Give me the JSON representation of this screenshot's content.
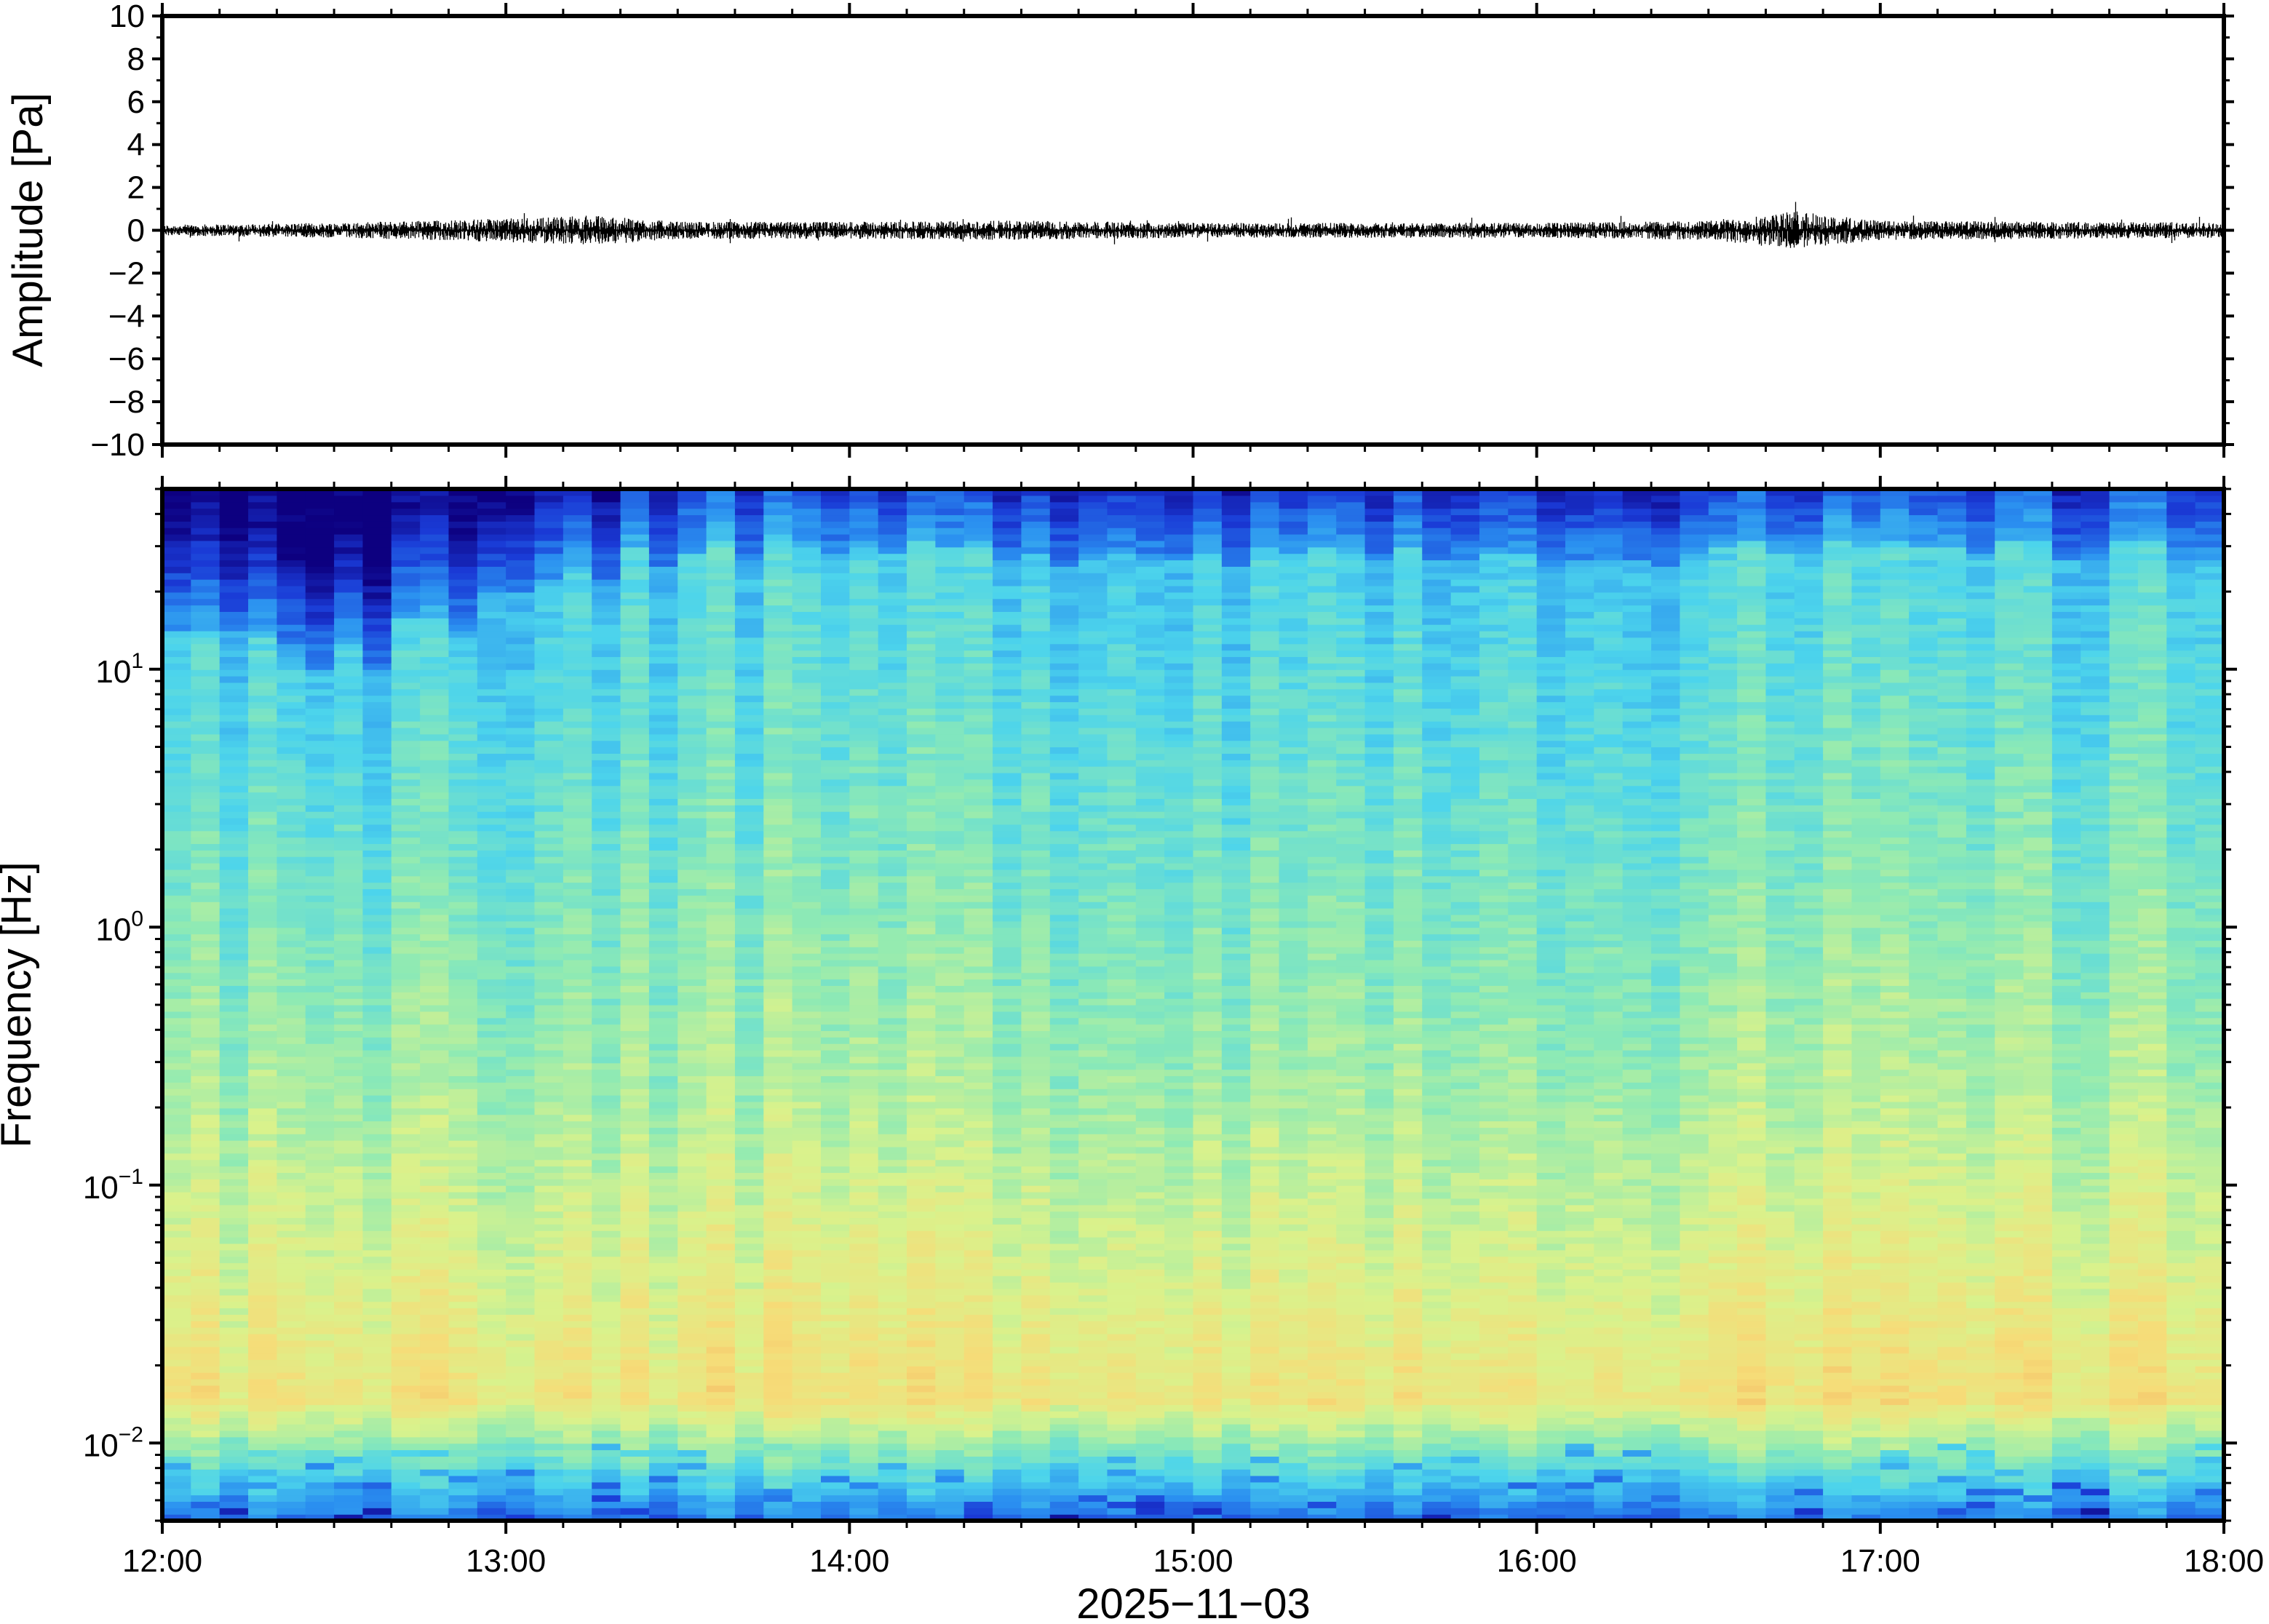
{
  "figure": {
    "date_label": "2025−11−03"
  },
  "chart_data": [
    {
      "type": "line",
      "title": "",
      "xlabel": "2025−11−03",
      "ylabel": "Amplitude [Pa]",
      "xlim": [
        "12:00",
        "18:00"
      ],
      "ylim": [
        -10,
        10
      ],
      "x_ticks": [
        "12:00",
        "13:00",
        "14:00",
        "15:00",
        "16:00",
        "17:00",
        "18:00"
      ],
      "y_ticks": [
        "10",
        "8",
        "6",
        "4",
        "2",
        "0",
        "−2",
        "−4",
        "−6",
        "−8",
        "−10"
      ],
      "grid": false,
      "series": [
        {
          "x": [
            "12:00",
            "12:30",
            "12:45",
            "13:00",
            "13:15",
            "13:30",
            "14:00",
            "14:30",
            "15:00",
            "15:30",
            "16:00",
            "16:30",
            "16:45",
            "17:00",
            "17:30",
            "18:00"
          ],
          "envelope": [
            0.25,
            0.35,
            0.45,
            0.55,
            0.7,
            0.4,
            0.4,
            0.45,
            0.35,
            0.35,
            0.35,
            0.45,
            0.9,
            0.45,
            0.4,
            0.35
          ]
        }
      ]
    },
    {
      "type": "heatmap",
      "title": "",
      "xlabel": "2025−11−03",
      "ylabel": "Frequency [Hz]",
      "xlim": [
        "12:00",
        "18:00"
      ],
      "ylim": [
        0.005,
        50
      ],
      "yscale": "log",
      "x_ticks": [
        "12:00",
        "13:00",
        "14:00",
        "15:00",
        "16:00",
        "17:00",
        "18:00"
      ],
      "y_ticks": [
        {
          "value": 10,
          "base": "10",
          "exp": "1"
        },
        {
          "value": 1,
          "base": "10",
          "exp": "0"
        },
        {
          "value": 0.1,
          "base": "10",
          "exp": "−1"
        },
        {
          "value": 0.01,
          "base": "10",
          "exp": "−2"
        }
      ],
      "colormap": [
        "#0d0080",
        "#1a3ad6",
        "#2a8ff0",
        "#4cd4ec",
        "#8eeab4",
        "#d9f28c",
        "#f6dc78",
        "#f3b05f"
      ],
      "grid": false
    }
  ]
}
